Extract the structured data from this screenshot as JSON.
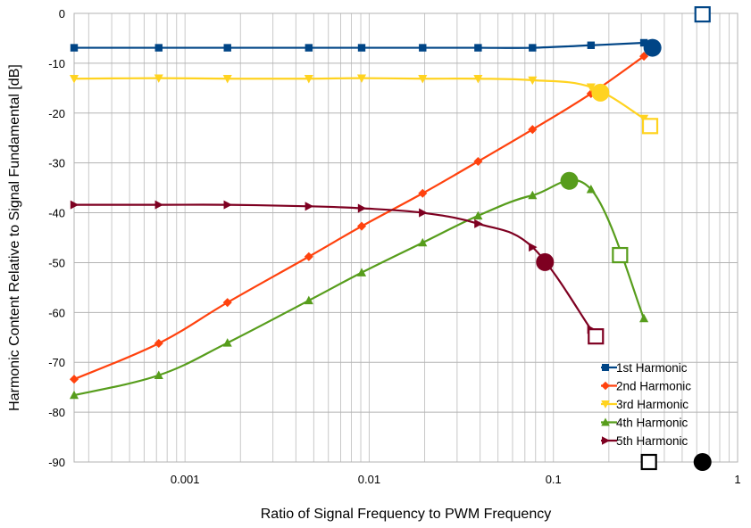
{
  "chart_data": {
    "type": "line",
    "xlabel": "Ratio of Signal Frequency to PWM Frequency",
    "ylabel": "Harmonic Content Relative to Signal Fundamental [dB]",
    "x_scale": "log",
    "xlim": [
      0.00025,
      1
    ],
    "ylim": [
      -90,
      0
    ],
    "grid": true,
    "legend_position": "bottom-right",
    "x_ticks": [
      {
        "value": 0.001,
        "label": "0.001"
      },
      {
        "value": 0.01,
        "label": "0.01"
      },
      {
        "value": 0.1,
        "label": "0.1"
      },
      {
        "value": 1,
        "label": "1"
      }
    ],
    "y_ticks": [
      {
        "value": 0,
        "label": "0"
      },
      {
        "value": -10,
        "label": "-10"
      },
      {
        "value": -20,
        "label": "-20"
      },
      {
        "value": -30,
        "label": "-30"
      },
      {
        "value": -40,
        "label": "-40"
      },
      {
        "value": -50,
        "label": "-50"
      },
      {
        "value": -60,
        "label": "-60"
      },
      {
        "value": -70,
        "label": "-70"
      },
      {
        "value": -80,
        "label": "-80"
      },
      {
        "value": -90,
        "label": "-90"
      }
    ],
    "series": [
      {
        "name": "1st Harmonic",
        "color": "#004586",
        "marker": "square",
        "points": [
          [
            0.00025,
            -6.9
          ],
          [
            0.00072,
            -6.9
          ],
          [
            0.0017,
            -6.9
          ],
          [
            0.0047,
            -6.9
          ],
          [
            0.0091,
            -6.9
          ],
          [
            0.0195,
            -6.9
          ],
          [
            0.039,
            -6.9
          ],
          [
            0.077,
            -6.9
          ],
          [
            0.16,
            -6.4
          ],
          [
            0.31,
            -5.9
          ]
        ],
        "circle_point": [
          0.345,
          -6.9
        ],
        "square_point": [
          0.645,
          -0.2
        ]
      },
      {
        "name": "2nd Harmonic",
        "color": "#ff420e",
        "marker": "diamond",
        "points": [
          [
            0.00025,
            -73.4
          ],
          [
            0.00072,
            -66.2
          ],
          [
            0.0017,
            -58.0
          ],
          [
            0.0047,
            -48.8
          ],
          [
            0.0091,
            -42.7
          ],
          [
            0.0195,
            -36.1
          ],
          [
            0.039,
            -29.7
          ],
          [
            0.077,
            -23.3
          ],
          [
            0.16,
            -16.1
          ],
          [
            0.31,
            -8.6
          ]
        ],
        "circle_point": null,
        "square_point": null
      },
      {
        "name": "3rd Harmonic",
        "color": "#ffd320",
        "marker": "triangle-down",
        "points": [
          [
            0.00025,
            -13.1
          ],
          [
            0.00072,
            -13.0
          ],
          [
            0.0017,
            -13.1
          ],
          [
            0.0047,
            -13.1
          ],
          [
            0.0091,
            -13.0
          ],
          [
            0.0195,
            -13.1
          ],
          [
            0.039,
            -13.1
          ],
          [
            0.077,
            -13.4
          ],
          [
            0.16,
            -14.8
          ],
          [
            0.31,
            -21.1
          ]
        ],
        "circle_point": [
          0.18,
          -15.9
        ],
        "square_point": [
          0.335,
          -22.6
        ]
      },
      {
        "name": "4th Harmonic",
        "color": "#579d1c",
        "marker": "triangle-up",
        "points": [
          [
            0.00025,
            -76.6
          ],
          [
            0.00072,
            -72.6
          ],
          [
            0.0017,
            -66.1
          ],
          [
            0.0047,
            -57.6
          ],
          [
            0.0091,
            -52.0
          ],
          [
            0.0195,
            -46.0
          ],
          [
            0.039,
            -40.6
          ],
          [
            0.077,
            -36.5
          ],
          [
            0.16,
            -35.3
          ],
          [
            0.31,
            -61.2
          ]
        ],
        "circle_point": [
          0.122,
          -33.6
        ],
        "square_point": [
          0.23,
          -48.5
        ]
      },
      {
        "name": "5th Harmonic",
        "color": "#7e0021",
        "marker": "triangle-right",
        "points": [
          [
            0.00025,
            -38.4
          ],
          [
            0.00072,
            -38.4
          ],
          [
            0.0017,
            -38.4
          ],
          [
            0.0047,
            -38.7
          ],
          [
            0.0091,
            -39.1
          ],
          [
            0.0195,
            -40.0
          ],
          [
            0.039,
            -42.2
          ],
          [
            0.077,
            -46.9
          ],
          [
            0.16,
            -63.4
          ]
        ],
        "circle_point": [
          0.09,
          -49.9
        ],
        "square_point": [
          0.17,
          -64.8
        ]
      }
    ],
    "extra_markers": [
      {
        "shape": "square",
        "x": 0.33,
        "y": -90,
        "color": "#000000"
      },
      {
        "shape": "circle",
        "x": 0.645,
        "y": -90,
        "color": "#000000"
      }
    ]
  }
}
